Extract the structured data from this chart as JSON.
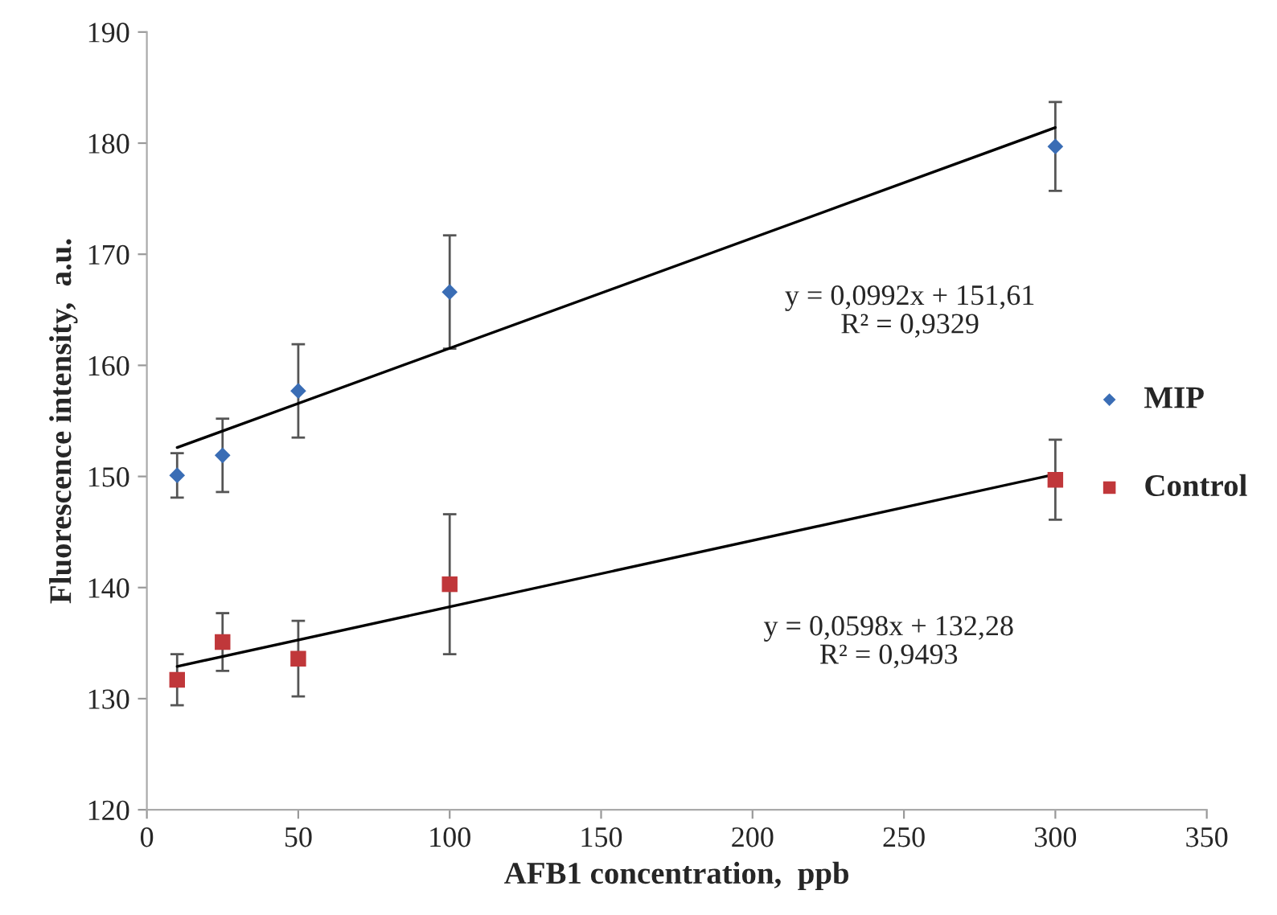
{
  "chart_data": {
    "type": "scatter",
    "xlabel": "AFB1 concentration,  ppb",
    "ylabel": "Fluorescence intensity,  a.u.",
    "xlim": [
      0,
      350
    ],
    "xticks": [
      0,
      50,
      100,
      150,
      200,
      250,
      300,
      350
    ],
    "ylim": [
      120,
      190
    ],
    "yticks": [
      120,
      130,
      140,
      150,
      160,
      170,
      180,
      190
    ],
    "grid": false,
    "legend": "right",
    "series": [
      {
        "name": "MIP",
        "color": "#3a6db5",
        "marker": "diamond",
        "x": [
          10,
          25,
          50,
          100,
          300
        ],
        "values": [
          150.1,
          151.9,
          157.7,
          166.6,
          179.7
        ],
        "errors": [
          2,
          3.3,
          4.2,
          5.1,
          4
        ]
      },
      {
        "name": "Control",
        "color": "#c0373a",
        "marker": "square",
        "x": [
          10,
          25,
          50,
          100,
          300
        ],
        "values": [
          131.7,
          135.1,
          133.6,
          140.3,
          149.7
        ],
        "errors": [
          2.3,
          2.6,
          3.4,
          6.3,
          3.6
        ]
      },
      {
        "type": "line",
        "color": "#000000",
        "x": [
          10,
          300
        ],
        "values": [
          152.6,
          181.4
        ]
      },
      {
        "type": "line",
        "color": "#000000",
        "x": [
          10,
          300
        ],
        "values": [
          132.9,
          150.2
        ]
      }
    ],
    "annotations": [
      "y = 0,0992x + 151,61\nR² = 0,9329",
      "y = 0,0598x + 132,28\nR² = 0,9493"
    ]
  }
}
